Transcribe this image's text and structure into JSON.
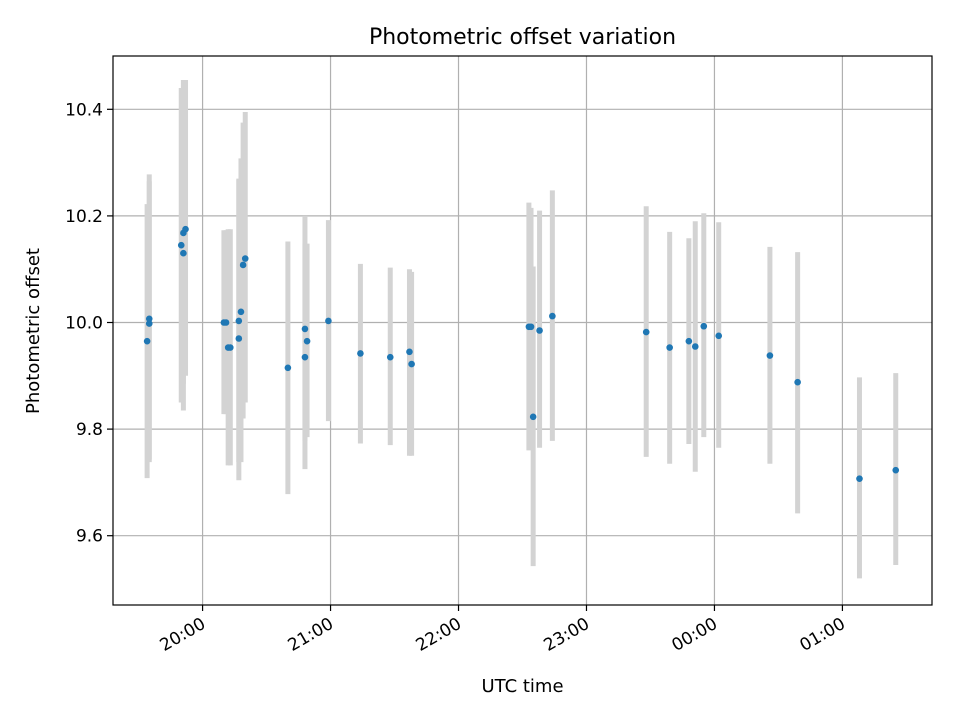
{
  "chart_data": {
    "type": "scatter",
    "title": "Photometric offset variation",
    "xlabel": "UTC time",
    "ylabel": "Photometric offset",
    "x_unit": "minutes from midnight UTC (times after midnight are listed as 24:xx / 25:xx)",
    "xlim": [
      "19:18",
      "25:42"
    ],
    "ylim": [
      9.47,
      10.5
    ],
    "x_ticks": [
      {
        "value": "20:00",
        "label": "20:00"
      },
      {
        "value": "21:00",
        "label": "21:00"
      },
      {
        "value": "22:00",
        "label": "22:00"
      },
      {
        "value": "23:00",
        "label": "23:00"
      },
      {
        "value": "24:00",
        "label": "00:00"
      },
      {
        "value": "25:00",
        "label": "01:00"
      }
    ],
    "y_ticks": [
      {
        "value": 9.6,
        "label": "9.6"
      },
      {
        "value": 9.8,
        "label": "9.8"
      },
      {
        "value": 10.0,
        "label": "10.0"
      },
      {
        "value": 10.2,
        "label": "10.2"
      },
      {
        "value": 10.4,
        "label": "10.4"
      }
    ],
    "grid": true,
    "legend": "none",
    "marker_color": "#1f77b4",
    "errorbar_color": "#d3d3d3",
    "points": [
      {
        "x": "19:34",
        "y": 9.965,
        "low": 9.708,
        "high": 10.222
      },
      {
        "x": "19:35",
        "y": 9.998,
        "low": 9.738,
        "high": 10.265
      },
      {
        "x": "19:35",
        "y": 10.007,
        "low": 9.743,
        "high": 10.278
      },
      {
        "x": "19:50",
        "y": 10.145,
        "low": 9.85,
        "high": 10.44
      },
      {
        "x": "19:51",
        "y": 10.13,
        "low": 9.835,
        "high": 10.425
      },
      {
        "x": "19:51",
        "y": 10.168,
        "low": 9.885,
        "high": 10.455
      },
      {
        "x": "19:52",
        "y": 10.175,
        "low": 9.9,
        "high": 10.455
      },
      {
        "x": "20:10",
        "y": 10.0,
        "low": 9.828,
        "high": 10.173
      },
      {
        "x": "20:11",
        "y": 10.0,
        "low": 9.828,
        "high": 10.173
      },
      {
        "x": "20:12",
        "y": 9.953,
        "low": 9.732,
        "high": 10.175
      },
      {
        "x": "20:13",
        "y": 9.953,
        "low": 9.732,
        "high": 10.175
      },
      {
        "x": "20:17",
        "y": 9.97,
        "low": 9.704,
        "high": 10.268
      },
      {
        "x": "20:17",
        "y": 10.003,
        "low": 9.738,
        "high": 10.27
      },
      {
        "x": "20:18",
        "y": 10.02,
        "low": 9.738,
        "high": 10.308
      },
      {
        "x": "20:19",
        "y": 10.108,
        "low": 9.82,
        "high": 10.375
      },
      {
        "x": "20:20",
        "y": 10.12,
        "low": 9.85,
        "high": 10.395
      },
      {
        "x": "20:40",
        "y": 9.915,
        "low": 9.678,
        "high": 10.152
      },
      {
        "x": "20:48",
        "y": 9.988,
        "low": 9.778,
        "high": 10.2
      },
      {
        "x": "20:48",
        "y": 9.935,
        "low": 9.725,
        "high": 10.148
      },
      {
        "x": "20:49",
        "y": 9.965,
        "low": 9.785,
        "high": 10.148
      },
      {
        "x": "20:59",
        "y": 10.003,
        "low": 9.815,
        "high": 10.192
      },
      {
        "x": "21:14",
        "y": 9.942,
        "low": 9.773,
        "high": 10.11
      },
      {
        "x": "21:28",
        "y": 9.935,
        "low": 9.77,
        "high": 10.103
      },
      {
        "x": "21:37",
        "y": 9.945,
        "low": 9.75,
        "high": 10.1
      },
      {
        "x": "21:38",
        "y": 9.922,
        "low": 9.75,
        "high": 10.095
      },
      {
        "x": "22:33",
        "y": 9.992,
        "low": 9.76,
        "high": 10.225
      },
      {
        "x": "22:34",
        "y": 9.992,
        "low": 9.77,
        "high": 10.215
      },
      {
        "x": "22:35",
        "y": 9.823,
        "low": 9.543,
        "high": 10.105
      },
      {
        "x": "22:38",
        "y": 9.985,
        "low": 9.765,
        "high": 10.21
      },
      {
        "x": "22:44",
        "y": 10.012,
        "low": 9.778,
        "high": 10.248
      },
      {
        "x": "23:28",
        "y": 9.982,
        "low": 9.748,
        "high": 10.218
      },
      {
        "x": "23:39",
        "y": 9.953,
        "low": 9.735,
        "high": 10.17
      },
      {
        "x": "23:48",
        "y": 9.965,
        "low": 9.772,
        "high": 10.158
      },
      {
        "x": "23:51",
        "y": 9.955,
        "low": 9.72,
        "high": 10.19
      },
      {
        "x": "23:55",
        "y": 9.993,
        "low": 9.785,
        "high": 10.205
      },
      {
        "x": "24:02",
        "y": 9.975,
        "low": 9.765,
        "high": 10.188
      },
      {
        "x": "24:26",
        "y": 9.938,
        "low": 9.735,
        "high": 10.142
      },
      {
        "x": "24:39",
        "y": 9.888,
        "low": 9.642,
        "high": 10.132
      },
      {
        "x": "25:08",
        "y": 9.707,
        "low": 9.52,
        "high": 9.897
      },
      {
        "x": "25:25",
        "y": 9.723,
        "low": 9.545,
        "high": 9.905
      }
    ]
  }
}
